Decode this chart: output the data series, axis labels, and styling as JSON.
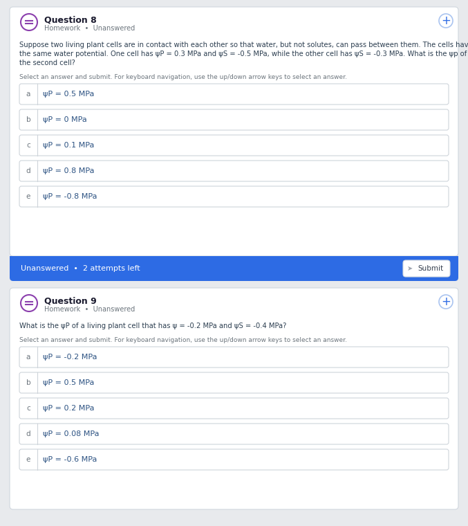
{
  "bg_color": "#e8eaed",
  "card_color": "#ffffff",
  "q8": {
    "title": "Question 8",
    "subtitle": "Homework  •  Unanswered",
    "body_lines": [
      "Suppose two living plant cells are in contact with each other so that water, but not solutes, can pass between them. The cells have",
      "the same water potential. One cell has ψP = 0.3 MPa and ψS = -0.5 MPa, while the other cell has ψS = -0.3 MPa. What is the ψp of",
      "the second cell?"
    ],
    "instruction": "Select an answer and submit. For keyboard navigation, use the up/down arrow keys to select an answer.",
    "options": [
      {
        "letter": "a",
        "text": "ψP = 0.5 MPa"
      },
      {
        "letter": "b",
        "text": "ψP = 0 MPa"
      },
      {
        "letter": "c",
        "text": "ψP = 0.1 MPa"
      },
      {
        "letter": "d",
        "text": "ψP = 0.8 MPa"
      },
      {
        "letter": "e",
        "text": "ψP = -0.8 MPa"
      }
    ],
    "footer_text": "Unanswered  •  2 attempts left",
    "submit_text": "Submit",
    "footer_bg": "#2d6be4",
    "footer_text_color": "#ffffff"
  },
  "q9": {
    "title": "Question 9",
    "subtitle": "Homework  •  Unanswered",
    "body_lines": [
      "What is the ψP of a living plant cell that has ψ = -0.2 MPa and ψS = -0.4 MPa?"
    ],
    "instruction": "Select an answer and submit. For keyboard navigation, use the up/down arrow keys to select an answer.",
    "options": [
      {
        "letter": "a",
        "text": "ψP = -0.2 MPa"
      },
      {
        "letter": "b",
        "text": "ψP = 0.5 MPa"
      },
      {
        "letter": "c",
        "text": "ψP = 0.2 MPa"
      },
      {
        "letter": "d",
        "text": "ψP = 0.08 MPa"
      },
      {
        "letter": "e",
        "text": "ψP = -0.6 MPa"
      }
    ]
  },
  "icon_color": "#8b3fad",
  "title_color": "#1a1a2e",
  "subtitle_color": "#6c757d",
  "body_text_color": "#2c3e50",
  "instruction_color": "#6c757d",
  "option_letter_color": "#6c757d",
  "option_text_color": "#2c5282",
  "option_border_color": "#ced4da",
  "plus_btn_color": "#2d6be4",
  "divider_color": "#ced4da"
}
